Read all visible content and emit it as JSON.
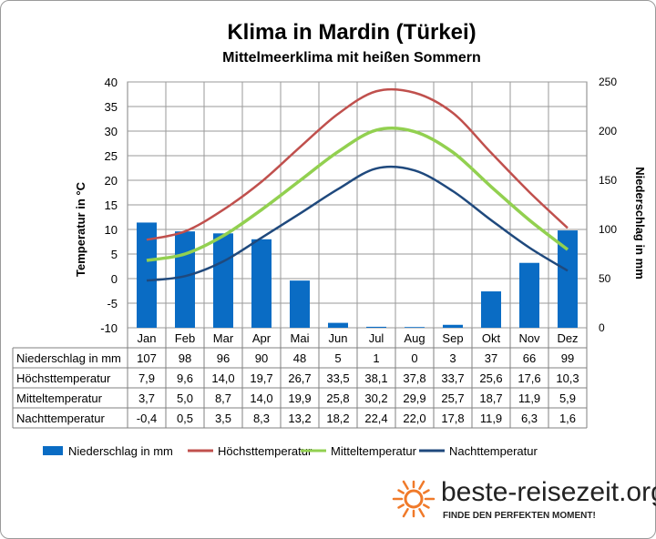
{
  "chart_data": {
    "type": "bar",
    "title": "Klima in Mardin (Türkei)",
    "subtitle": "Mittelmeerklima mit heißen Sommern",
    "ylabel": "Temperatur in °C",
    "y2label": "Niederschlag in mm",
    "ylim": [
      -10,
      40
    ],
    "y2lim": [
      0,
      250
    ],
    "yticks": [
      "40",
      "35",
      "30",
      "25",
      "20",
      "15",
      "10",
      "5",
      "0",
      "-5",
      "-10"
    ],
    "y2ticks": [
      "250",
      "200",
      "150",
      "100",
      "50",
      "0"
    ],
    "categories": [
      "Jan",
      "Feb",
      "Mar",
      "Apr",
      "Mai",
      "Jun",
      "Jul",
      "Aug",
      "Sep",
      "Okt",
      "Nov",
      "Dez"
    ],
    "grid": true,
    "legend_position": "bottom",
    "series": [
      {
        "name": "Niederschlag in mm",
        "type": "bar",
        "axis": "right",
        "color": "#0a6cc4",
        "values": [
          107,
          98,
          96,
          90,
          48,
          5,
          1,
          0,
          3,
          37,
          66,
          99
        ],
        "labels": [
          "107",
          "98",
          "96",
          "90",
          "48",
          "5",
          "1",
          "0",
          "3",
          "37",
          "66",
          "99"
        ]
      },
      {
        "name": "Höchsttemperatur",
        "type": "line",
        "axis": "left",
        "color": "#c0504d",
        "values": [
          7.9,
          9.6,
          14.0,
          19.7,
          26.7,
          33.5,
          38.1,
          37.8,
          33.7,
          25.6,
          17.6,
          10.3
        ],
        "labels": [
          "7,9",
          "9,6",
          "14,0",
          "19,7",
          "26,7",
          "33,5",
          "38,1",
          "37,8",
          "33,7",
          "25,6",
          "17,6",
          "10,3"
        ]
      },
      {
        "name": "Mitteltemperatur",
        "type": "line",
        "axis": "left",
        "color": "#92d050",
        "values": [
          3.7,
          5.0,
          8.7,
          14.0,
          19.9,
          25.8,
          30.2,
          29.9,
          25.7,
          18.7,
          11.9,
          5.9
        ],
        "labels": [
          "3,7",
          "5,0",
          "8,7",
          "14,0",
          "19,9",
          "25,8",
          "30,2",
          "29,9",
          "25,7",
          "18,7",
          "11,9",
          "5,9"
        ]
      },
      {
        "name": "Nachttemperatur",
        "type": "line",
        "axis": "left",
        "color": "#1f497d",
        "values": [
          -0.4,
          0.5,
          3.5,
          8.3,
          13.2,
          18.2,
          22.4,
          22.0,
          17.8,
          11.9,
          6.3,
          1.6
        ],
        "labels": [
          "-0,4",
          "0,5",
          "3,5",
          "8,3",
          "13,2",
          "18,2",
          "22,4",
          "22,0",
          "17,8",
          "11,9",
          "6,3",
          "1,6"
        ]
      }
    ]
  },
  "branding": {
    "name": "beste-reisezeit.org",
    "slogan": "FINDE DEN PERFEKTEN MOMENT!",
    "icon": "sun-icon",
    "icon_color": "#f07a2a"
  }
}
